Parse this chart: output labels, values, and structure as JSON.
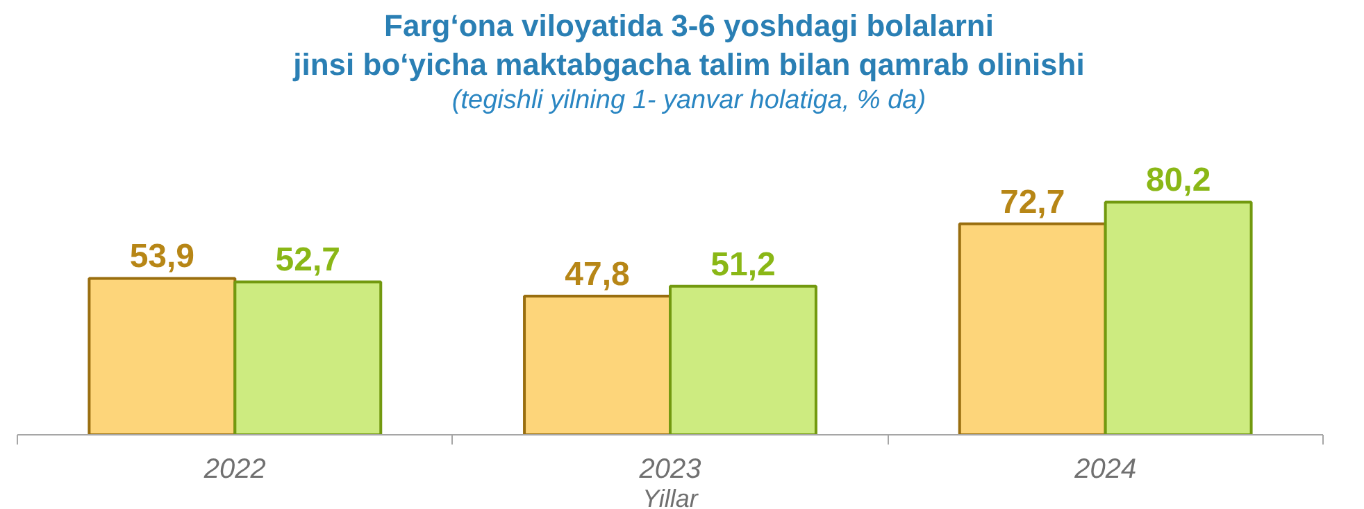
{
  "chart_data": {
    "type": "bar",
    "title": "Farg‘ona viloyatida 3-6 yoshdagi bolalarni\njinsi bo‘yicha maktabgacha talim bilan qamrab olinishi",
    "subtitle": "(tegishli yilning 1- yanvar holatiga, % da)",
    "xlabel": "Yillar",
    "categories": [
      "2022",
      "2023",
      "2024"
    ],
    "series": [
      {
        "color": "#fdd57a",
        "values": [
          53.9,
          47.8,
          72.7
        ],
        "value_labels": [
          "53,9",
          "47,8",
          "72,7"
        ]
      },
      {
        "color": "#cdeb80",
        "values": [
          52.7,
          51.2,
          80.2
        ],
        "value_labels": [
          "52,7",
          "51,2",
          "80,2"
        ]
      }
    ],
    "grid": false
  }
}
